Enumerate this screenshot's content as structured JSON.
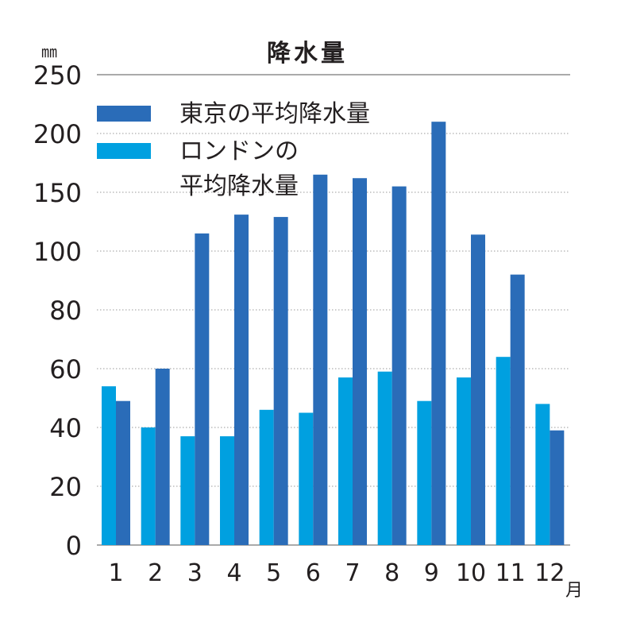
{
  "chart_data": {
    "type": "bar",
    "title": "降水量",
    "unit_label": "㎜",
    "x_unit_label": "月",
    "categories": [
      "1",
      "2",
      "3",
      "4",
      "5",
      "6",
      "7",
      "8",
      "9",
      "10",
      "11",
      "12"
    ],
    "y_tick_labels": [
      "0",
      "20",
      "40",
      "60",
      "80",
      "100",
      "150",
      "200",
      "250"
    ],
    "series": [
      {
        "name": "ロンドンの平均降水量",
        "legend_lines": [
          "ロンドンの",
          "平均降水量"
        ],
        "color": "#00a0e0",
        "values": [
          54,
          40,
          37,
          37,
          46,
          45,
          57,
          59,
          49,
          57,
          64,
          48
        ]
      },
      {
        "name": "東京の平均降水量",
        "legend_lines": [
          "東京の平均降水量"
        ],
        "color": "#2a6cb8",
        "values": [
          49,
          60,
          115,
          131,
          129,
          165,
          162,
          155,
          210,
          114,
          92,
          39
        ]
      }
    ],
    "legend_order": [
      1,
      0
    ],
    "scale_note": "piecewise y-axis: evenly spaced ticks 0-100 by 20, then 150, 200, 250",
    "ylim": [
      0,
      250
    ],
    "grid": true,
    "legend_position": "top-left"
  }
}
